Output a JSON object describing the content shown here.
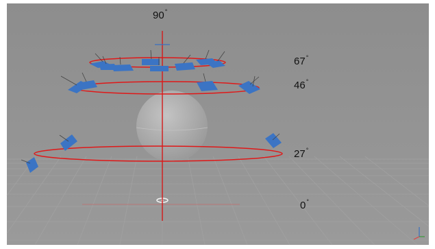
{
  "viewport": {
    "background": "#8f8f8f",
    "grid_color": "#a4a4a4",
    "ring_color": "#e01818",
    "axis_color": "#d41a1a",
    "panel_color": "#3b74c4",
    "sphere_color": "#b8b8b8"
  },
  "labels": {
    "top": "90",
    "ring_67": "67",
    "ring_46": "46",
    "ring_27": "27",
    "ground": "0",
    "degree_symbol": "°"
  },
  "icons": {
    "axis_gizmo": "axis-gizmo-icon"
  }
}
